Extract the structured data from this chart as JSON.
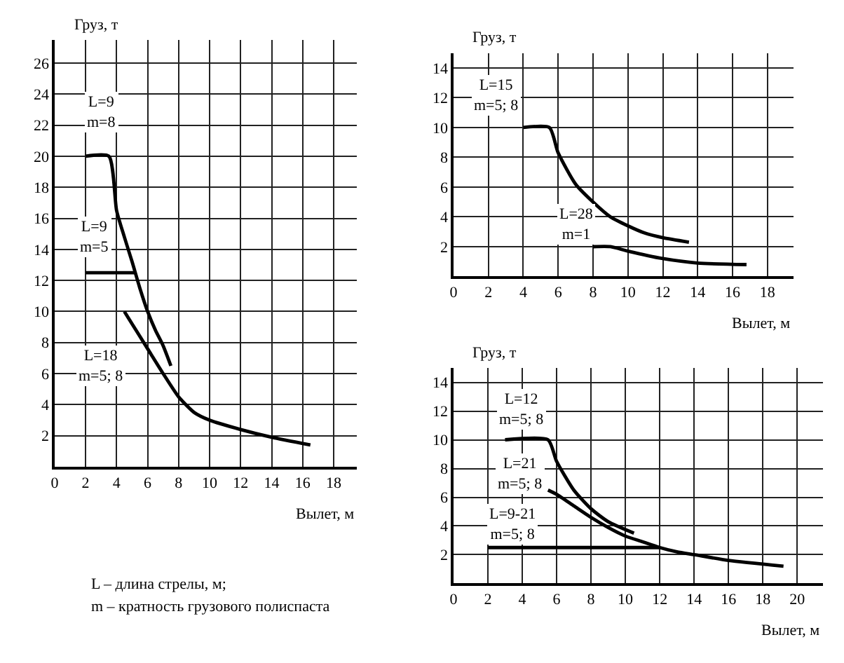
{
  "chart_data": [
    {
      "type": "line",
      "xlabel": "Вылет, м",
      "ylabel": "Груз, т",
      "xlim": [
        0,
        19.5
      ],
      "ylim": [
        0,
        27.5
      ],
      "xticks": [
        0,
        2,
        4,
        6,
        8,
        10,
        12,
        14,
        16,
        18
      ],
      "yticks": [
        2,
        4,
        6,
        8,
        10,
        12,
        14,
        16,
        18,
        20,
        22,
        24,
        26
      ],
      "grid": true,
      "legend": false,
      "marker": "none",
      "line_style": "solid",
      "series": [
        {
          "name": "L=9\nm=8",
          "color": "#000000",
          "x": [
            2,
            3.5,
            4,
            4.5,
            5,
            5.5,
            6,
            6.5,
            7,
            7.5
          ],
          "values": [
            20,
            20,
            16.5,
            14.8,
            13.2,
            11.5,
            10,
            8.8,
            7.8,
            6.5
          ]
        },
        {
          "name": "L=9\nm=5",
          "color": "#000000",
          "x": [
            2,
            5.2
          ],
          "values": [
            12.5,
            12.5
          ]
        },
        {
          "name": "L=18\nm=5; 8",
          "color": "#000000",
          "x": [
            4.5,
            5,
            6,
            7,
            8,
            9,
            10,
            12,
            14,
            16.5
          ],
          "values": [
            10,
            9.2,
            7.6,
            6,
            4.5,
            3.5,
            3,
            2.4,
            1.9,
            1.4
          ]
        }
      ],
      "annotations": [
        "L – длина стрелы, м;",
        "m – кратность грузового полиспаста"
      ]
    },
    {
      "type": "line",
      "xlabel": "Вылет, м",
      "ylabel": "Груз, т",
      "xlim": [
        0,
        19.5
      ],
      "ylim": [
        0,
        15
      ],
      "xticks": [
        0,
        2,
        4,
        6,
        8,
        10,
        12,
        14,
        16,
        18
      ],
      "yticks": [
        2,
        4,
        6,
        8,
        10,
        12,
        14
      ],
      "grid": true,
      "legend": false,
      "marker": "none",
      "line_style": "solid",
      "series": [
        {
          "name": "L=15\nm=5; 8",
          "color": "#000000",
          "x": [
            4,
            5.5,
            6,
            7,
            8,
            9,
            10,
            11,
            12,
            13.5
          ],
          "values": [
            10,
            10,
            8.3,
            6.2,
            5,
            4,
            3.4,
            2.9,
            2.6,
            2.3
          ]
        },
        {
          "name": "L=28\nm=1",
          "color": "#000000",
          "x": [
            8,
            9,
            10,
            12,
            14,
            16.8
          ],
          "values": [
            2,
            2,
            1.7,
            1.2,
            0.9,
            0.8
          ]
        }
      ]
    },
    {
      "type": "line",
      "xlabel": "Вылет, м",
      "ylabel": "Груз, т",
      "xlim": [
        0,
        21.5
      ],
      "ylim": [
        0,
        15
      ],
      "xticks": [
        0,
        2,
        4,
        6,
        8,
        10,
        12,
        14,
        16,
        18,
        20
      ],
      "yticks": [
        2,
        4,
        6,
        8,
        10,
        12,
        14
      ],
      "grid": true,
      "legend": false,
      "marker": "none",
      "line_style": "solid",
      "series": [
        {
          "name": "L=12\nm=5; 8",
          "color": "#000000",
          "x": [
            3,
            5.5,
            6,
            7,
            8,
            9,
            10.5
          ],
          "values": [
            10,
            10,
            8.5,
            6.5,
            5.2,
            4.3,
            3.5
          ]
        },
        {
          "name": "L=21\nm=5; 8",
          "color": "#000000",
          "x": [
            5.5,
            6,
            7,
            8,
            9,
            10,
            11,
            12,
            13,
            14,
            16,
            19.2
          ],
          "values": [
            6.5,
            6.2,
            5.4,
            4.6,
            3.9,
            3.3,
            2.9,
            2.5,
            2.2,
            2,
            1.6,
            1.2
          ]
        },
        {
          "name": "L=9-21\nm=5; 8",
          "color": "#000000",
          "x": [
            2,
            12
          ],
          "values": [
            2.5,
            2.5
          ]
        }
      ]
    }
  ]
}
